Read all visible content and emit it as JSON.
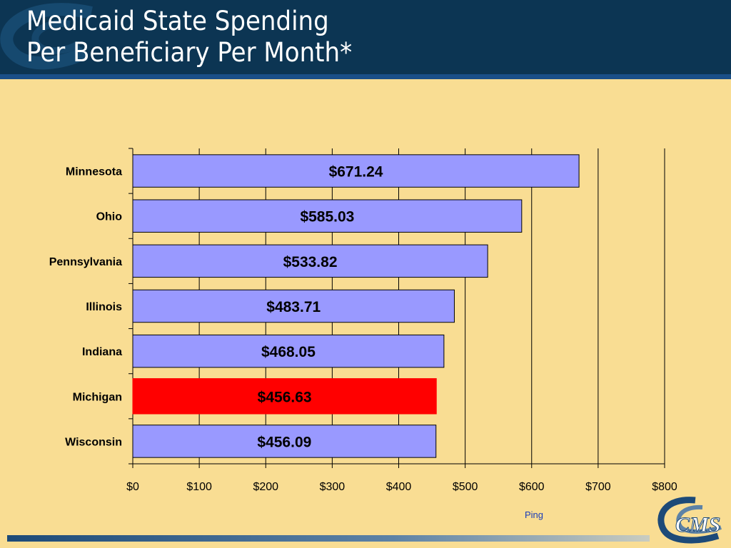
{
  "header": {
    "title_line1": "Medicaid State Spending",
    "title_line2": "Per Beneficiary Per Month*"
  },
  "footnote": "Ping",
  "logo_text": "CMS",
  "colors": {
    "header_bg": "#0c3553",
    "background": "#f9dd93",
    "bar": "#9999ff",
    "highlight_bar": "#ff0000"
  },
  "chart_data": {
    "type": "bar",
    "orientation": "horizontal",
    "categories": [
      "Minnesota",
      "Ohio",
      "Pennsylvania",
      "Illinois",
      "Indiana",
      "Michigan",
      "Wisconsin"
    ],
    "values": [
      671.24,
      585.03,
      533.82,
      483.71,
      468.05,
      456.63,
      456.09
    ],
    "data_labels": [
      "$671.24",
      "$585.03",
      "$533.82",
      "$483.71",
      "$468.05",
      "$456.63",
      "$456.09"
    ],
    "highlighted": "Michigan",
    "xlim": [
      0,
      800
    ],
    "xticks": [
      0,
      100,
      200,
      300,
      400,
      500,
      600,
      700,
      800
    ],
    "xtick_labels": [
      "$0",
      "$100",
      "$200",
      "$300",
      "$400",
      "$500",
      "$600",
      "$700",
      "$800"
    ],
    "grid": "vertical",
    "title": "Medicaid State Spending Per Beneficiary Per Month*"
  }
}
